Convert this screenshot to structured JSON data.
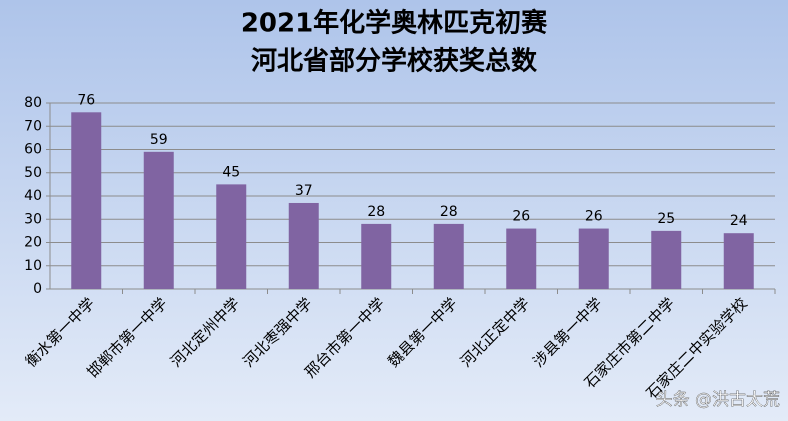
{
  "chart_data": {
    "type": "bar",
    "title": [
      "2021年化学奥林匹克初赛",
      "河北省部分学校获奖总数"
    ],
    "categories": [
      "衡水第一中学",
      "邯郸市第一中学",
      "河北定州中学",
      "河北枣强中学",
      "邢台市第一中学",
      "魏县第一中学",
      "河北正定中学",
      "涉县第一中学",
      "石家庄市第二中学",
      "石家庄二中实验学校"
    ],
    "values": [
      76,
      59,
      45,
      37,
      28,
      28,
      26,
      26,
      25,
      24
    ],
    "color": "#8064a2",
    "ylim": [
      0,
      80
    ],
    "yticks": [
      0,
      10,
      20,
      30,
      40,
      50,
      60,
      70,
      80
    ],
    "grid": true,
    "watermark": "头条 @洪古太荒"
  }
}
